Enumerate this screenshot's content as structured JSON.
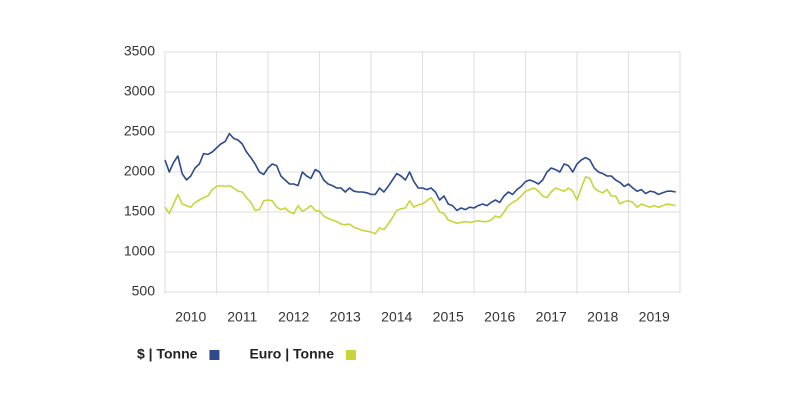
{
  "chart_data": {
    "type": "line",
    "x": [
      2010.0,
      2010.083,
      2010.167,
      2010.25,
      2010.333,
      2010.417,
      2010.5,
      2010.583,
      2010.667,
      2010.75,
      2010.833,
      2010.917,
      2011.0,
      2011.083,
      2011.167,
      2011.25,
      2011.333,
      2011.417,
      2011.5,
      2011.583,
      2011.667,
      2011.75,
      2011.833,
      2011.917,
      2012.0,
      2012.083,
      2012.167,
      2012.25,
      2012.333,
      2012.417,
      2012.5,
      2012.583,
      2012.667,
      2012.75,
      2012.833,
      2012.917,
      2013.0,
      2013.083,
      2013.167,
      2013.25,
      2013.333,
      2013.417,
      2013.5,
      2013.583,
      2013.667,
      2013.75,
      2013.833,
      2013.917,
      2014.0,
      2014.083,
      2014.167,
      2014.25,
      2014.333,
      2014.417,
      2014.5,
      2014.583,
      2014.667,
      2014.75,
      2014.833,
      2014.917,
      2015.0,
      2015.083,
      2015.167,
      2015.25,
      2015.333,
      2015.417,
      2015.5,
      2015.583,
      2015.667,
      2015.75,
      2015.833,
      2015.917,
      2016.0,
      2016.083,
      2016.167,
      2016.25,
      2016.333,
      2016.417,
      2016.5,
      2016.583,
      2016.667,
      2016.75,
      2016.833,
      2016.917,
      2017.0,
      2017.083,
      2017.167,
      2017.25,
      2017.333,
      2017.417,
      2017.5,
      2017.583,
      2017.667,
      2017.75,
      2017.833,
      2017.917,
      2018.0,
      2018.083,
      2018.167,
      2018.25,
      2018.333,
      2018.417,
      2018.5,
      2018.583,
      2018.667,
      2018.75,
      2018.833,
      2018.917,
      2019.0,
      2019.083,
      2019.167,
      2019.25,
      2019.333,
      2019.417,
      2019.5,
      2019.583,
      2019.667,
      2019.75,
      2019.833,
      2019.917
    ],
    "series": [
      {
        "name": "$ | Tonne",
        "color": "#2d4a8c",
        "values": [
          2150,
          2000,
          2120,
          2200,
          1980,
          1900,
          1950,
          2050,
          2100,
          2230,
          2220,
          2250,
          2300,
          2350,
          2380,
          2480,
          2420,
          2400,
          2350,
          2250,
          2180,
          2100,
          2000,
          1970,
          2050,
          2100,
          2080,
          1950,
          1900,
          1850,
          1850,
          1830,
          2000,
          1950,
          1920,
          2030,
          2000,
          1900,
          1850,
          1830,
          1800,
          1800,
          1750,
          1800,
          1760,
          1750,
          1750,
          1740,
          1720,
          1720,
          1800,
          1750,
          1820,
          1900,
          1980,
          1950,
          1900,
          2000,
          1880,
          1800,
          1800,
          1780,
          1800,
          1750,
          1650,
          1700,
          1600,
          1580,
          1520,
          1550,
          1530,
          1560,
          1550,
          1580,
          1600,
          1580,
          1620,
          1650,
          1620,
          1700,
          1750,
          1720,
          1780,
          1820,
          1880,
          1900,
          1880,
          1850,
          1900,
          2000,
          2050,
          2030,
          2000,
          2100,
          2080,
          2000,
          2100,
          2150,
          2180,
          2150,
          2050,
          2000,
          1980,
          1950,
          1950,
          1900,
          1870,
          1820,
          1850,
          1800,
          1760,
          1780,
          1730,
          1760,
          1750,
          1720,
          1740,
          1760,
          1760,
          1750
        ]
      },
      {
        "name": "Euro | Tonne",
        "color": "#c9d43b",
        "values": [
          1560,
          1480,
          1600,
          1720,
          1600,
          1580,
          1560,
          1620,
          1650,
          1680,
          1700,
          1780,
          1820,
          1830,
          1820,
          1830,
          1800,
          1760,
          1750,
          1680,
          1620,
          1520,
          1530,
          1640,
          1650,
          1640,
          1560,
          1530,
          1550,
          1500,
          1480,
          1580,
          1510,
          1540,
          1580,
          1520,
          1510,
          1450,
          1420,
          1400,
          1380,
          1350,
          1340,
          1350,
          1310,
          1290,
          1270,
          1260,
          1250,
          1230,
          1300,
          1280,
          1350,
          1430,
          1520,
          1540,
          1550,
          1640,
          1560,
          1590,
          1600,
          1640,
          1680,
          1600,
          1500,
          1480,
          1400,
          1380,
          1360,
          1370,
          1380,
          1370,
          1380,
          1390,
          1380,
          1380,
          1400,
          1450,
          1430,
          1500,
          1580,
          1620,
          1650,
          1700,
          1760,
          1780,
          1800,
          1760,
          1700,
          1680,
          1750,
          1800,
          1780,
          1760,
          1800,
          1760,
          1650,
          1800,
          1940,
          1920,
          1800,
          1760,
          1740,
          1780,
          1700,
          1700,
          1600,
          1630,
          1640,
          1620,
          1560,
          1600,
          1580,
          1560,
          1580,
          1560,
          1580,
          1600,
          1590,
          1580
        ]
      }
    ],
    "xlim": [
      2010,
      2020
    ],
    "xticks": [
      2010,
      2011,
      2012,
      2013,
      2014,
      2015,
      2016,
      2017,
      2018,
      2019
    ],
    "ylim": [
      500,
      3500
    ],
    "yticks": [
      500,
      1000,
      1500,
      2000,
      2500,
      3000,
      3500
    ],
    "grid": true
  }
}
